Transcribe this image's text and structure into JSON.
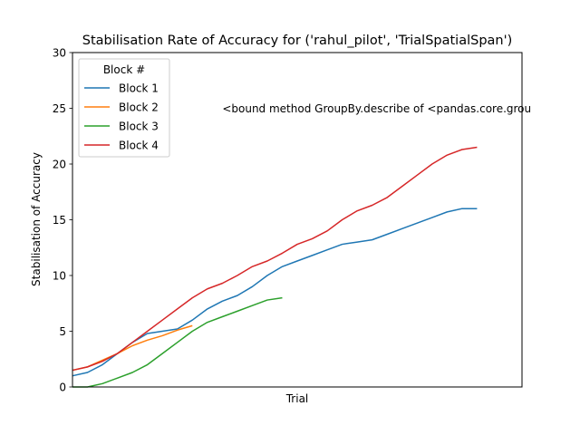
{
  "chart_data": {
    "type": "line",
    "title": "Stabilisation Rate of Accuracy for ('rahul_pilot', 'TrialSpatialSpan')",
    "xlabel": "Trial",
    "ylabel": "Stabilisation of Accuracy",
    "xlim": [
      0,
      30
    ],
    "ylim": [
      0,
      30
    ],
    "yticks": [
      "0",
      "5",
      "10",
      "15",
      "20",
      "25",
      "30"
    ],
    "grid": false,
    "legend": {
      "title": "Block #",
      "placement": "top-left"
    },
    "annotation": {
      "text": "<bound method GroupBy.describe of <pandas.core.grou",
      "x": 10,
      "y": 25
    },
    "series": [
      {
        "name": "Block 1",
        "color": "#1f77b4",
        "x": [
          0,
          1,
          2,
          3,
          4,
          5,
          6,
          7,
          8,
          9,
          10,
          11,
          12,
          13,
          14,
          15,
          16,
          17,
          18,
          19,
          20,
          21,
          22,
          23,
          24,
          25,
          26,
          27
        ],
        "y": [
          1.0,
          1.3,
          2.0,
          3.0,
          4.0,
          4.8,
          5.0,
          5.2,
          6.0,
          7.0,
          7.7,
          8.2,
          9.0,
          10.0,
          10.8,
          11.3,
          11.8,
          12.3,
          12.8,
          13.0,
          13.2,
          13.7,
          14.2,
          14.7,
          15.2,
          15.7,
          16.0,
          16.0
        ]
      },
      {
        "name": "Block 2",
        "color": "#ff7f0e",
        "x": [
          0,
          1,
          2,
          3,
          4,
          5,
          6,
          7,
          8
        ],
        "y": [
          1.5,
          1.8,
          2.4,
          3.0,
          3.7,
          4.2,
          4.6,
          5.1,
          5.5
        ]
      },
      {
        "name": "Block 3",
        "color": "#2ca02c",
        "x": [
          0,
          1,
          2,
          3,
          4,
          5,
          6,
          7,
          8,
          9,
          10,
          11,
          12,
          13,
          14
        ],
        "y": [
          0.0,
          0.0,
          0.3,
          0.8,
          1.3,
          2.0,
          3.0,
          4.0,
          5.0,
          5.8,
          6.3,
          6.8,
          7.3,
          7.8,
          8.0
        ]
      },
      {
        "name": "Block 4",
        "color": "#d62728",
        "x": [
          0,
          1,
          2,
          3,
          4,
          5,
          6,
          7,
          8,
          9,
          10,
          11,
          12,
          13,
          14,
          15,
          16,
          17,
          18,
          19,
          20,
          21,
          22,
          23,
          24,
          25,
          26,
          27
        ],
        "y": [
          1.5,
          1.8,
          2.3,
          3.0,
          4.0,
          5.0,
          6.0,
          7.0,
          8.0,
          8.8,
          9.3,
          10.0,
          10.8,
          11.3,
          12.0,
          12.8,
          13.3,
          14.0,
          15.0,
          15.8,
          16.3,
          17.0,
          18.0,
          19.0,
          20.0,
          20.8,
          21.3,
          21.5
        ]
      }
    ]
  }
}
